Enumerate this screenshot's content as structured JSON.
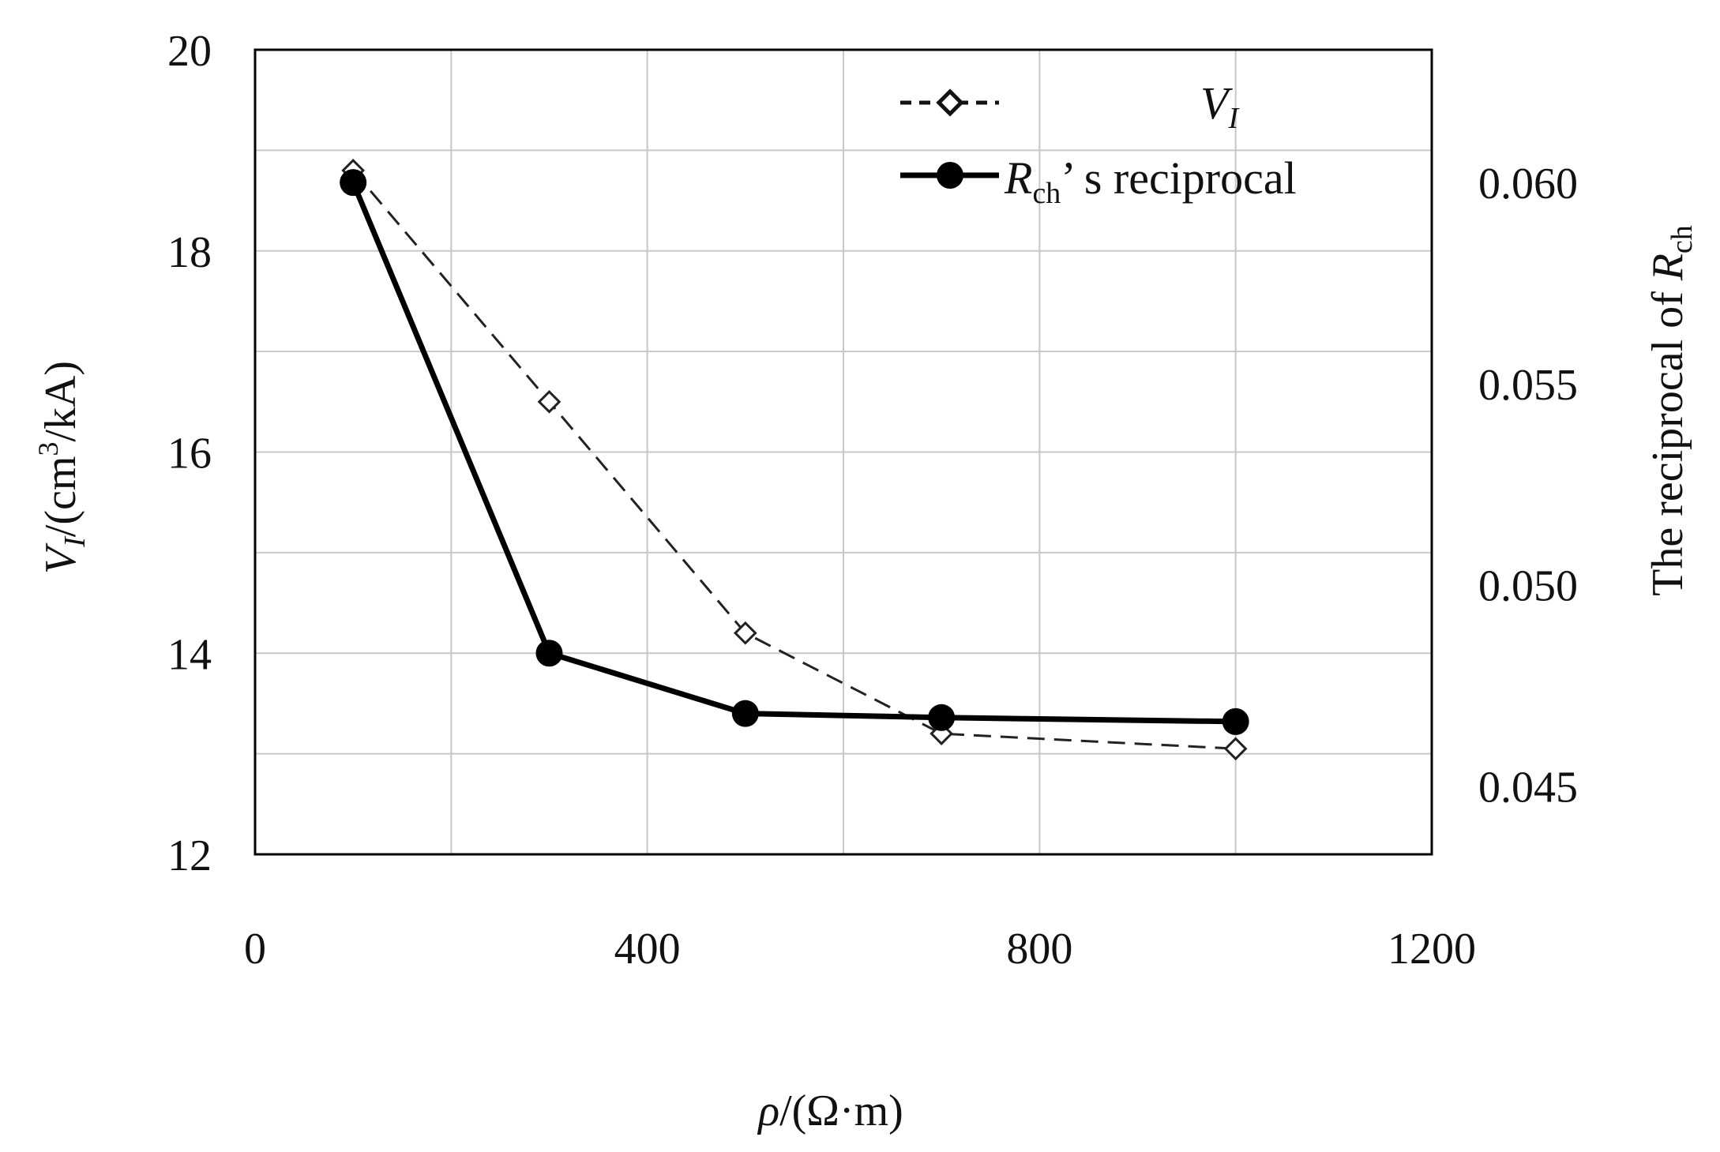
{
  "chart_data": {
    "type": "line",
    "xlabel": {
      "main": "ρ/(Ω·m)"
    },
    "ylabel_left": {
      "v": "V",
      "v_sub": "I",
      "rest1": "/(cm",
      "sup": "3",
      "rest2": "/kA)"
    },
    "ylabel_right": {
      "main": "The reciprocal of ",
      "r": "R",
      "r_sub": "ch"
    },
    "xlim": [
      0,
      1200
    ],
    "ylim_left": [
      12,
      20
    ],
    "ylim_right": [
      0.0433,
      0.0633
    ],
    "x_ticks": [
      "0",
      "400",
      "800",
      "1200"
    ],
    "x_tick_values": [
      0,
      400,
      800,
      1200
    ],
    "y_ticks_left": [
      "12",
      "14",
      "16",
      "18",
      "20"
    ],
    "y_tick_values_left": [
      12,
      14,
      16,
      18,
      20
    ],
    "y_ticks_right": [
      "0.045",
      "0.050",
      "0.055",
      "0.060"
    ],
    "y_tick_values_right": [
      0.045,
      0.05,
      0.055,
      0.06
    ],
    "grid": true,
    "legend": {
      "placement": "top-right",
      "items": [
        {
          "label_main": "V",
          "label_sub": "I",
          "label_rest": "",
          "style": "dashed",
          "marker": "diamond-open"
        },
        {
          "label_main": "R",
          "label_sub": "ch",
          "label_rest": "’   s reciprocal",
          "style": "solid",
          "marker": "circle-filled"
        }
      ]
    },
    "series": [
      {
        "name": "V_I",
        "axis": "left",
        "color": "#222222",
        "x": [
          100,
          300,
          500,
          700,
          1000
        ],
        "values": [
          18.8,
          16.5,
          14.2,
          13.2,
          13.05
        ]
      },
      {
        "name": "R_ch's reciprocal",
        "axis": "right",
        "color": "#000000",
        "x": [
          100,
          300,
          500,
          700,
          1000
        ],
        "values": [
          0.06,
          0.0483,
          0.0468,
          0.0467,
          0.0466
        ]
      }
    ]
  }
}
